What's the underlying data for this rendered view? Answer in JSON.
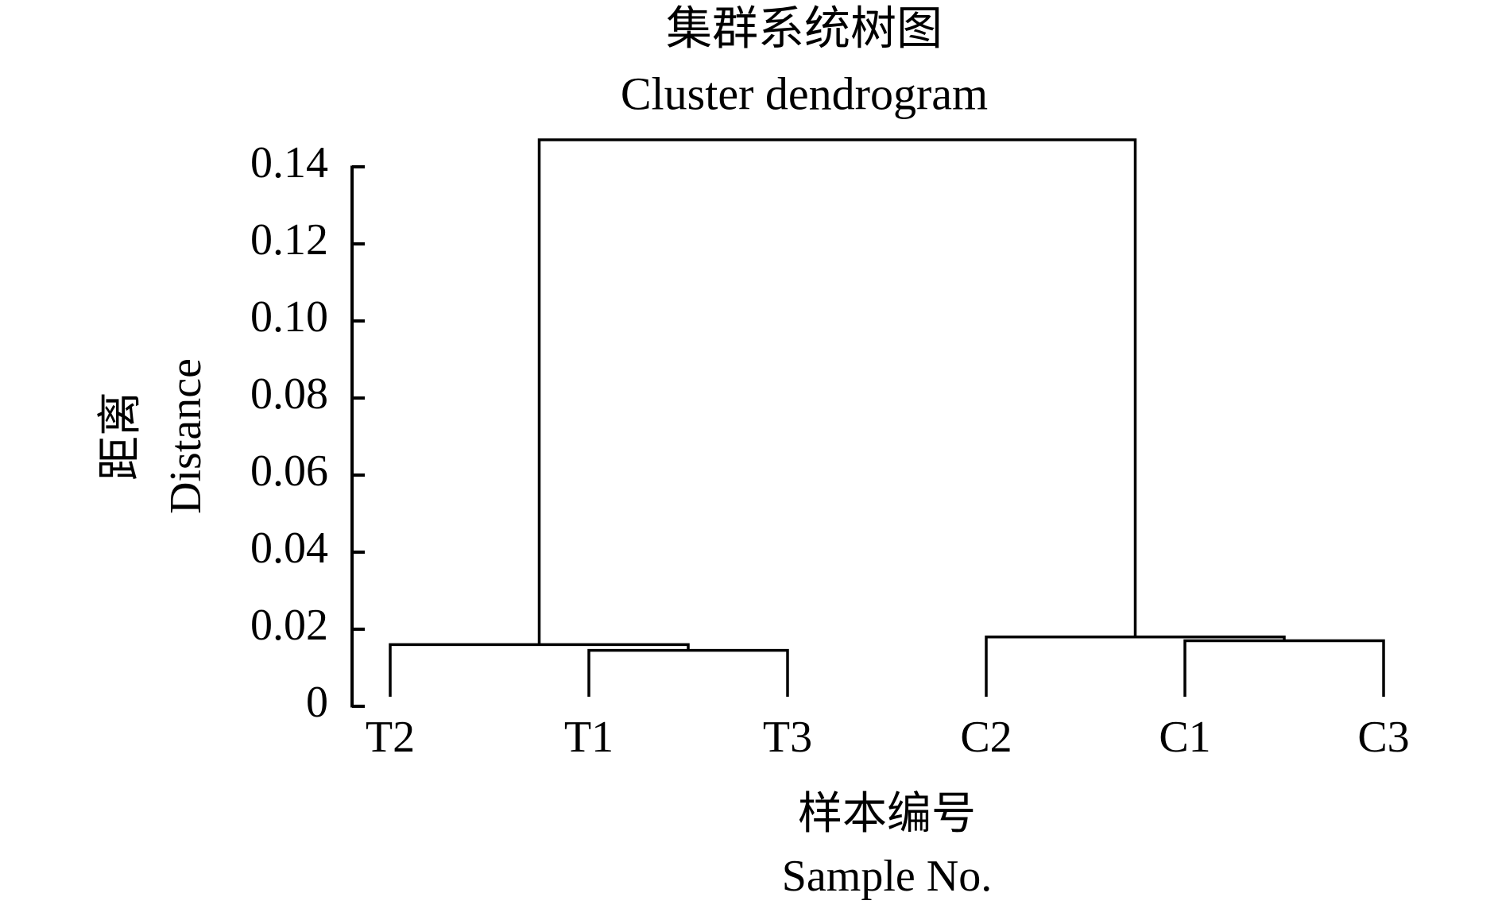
{
  "chart_data": {
    "type": "dendrogram",
    "title": "集群系统树图",
    "subtitle": "Cluster dendrogram",
    "y_label": "距离",
    "y_label_en": "Distance",
    "x_label": "样本编号",
    "x_label_en": "Sample No.",
    "categories": [
      "T2",
      "T1",
      "T3",
      "C2",
      "C1",
      "C3"
    ],
    "merges": [
      {
        "left": 1,
        "right": 2,
        "height": 0.0145
      },
      {
        "left": 0,
        "right": 6,
        "height": 0.016
      },
      {
        "left": 4,
        "right": 5,
        "height": 0.017
      },
      {
        "left": 3,
        "right": 8,
        "height": 0.018
      },
      {
        "left": 7,
        "right": 9,
        "height": 0.147
      }
    ],
    "color": "#000000",
    "ylim": [
      0,
      0.14
    ],
    "yticks": [
      0,
      0.02,
      0.04,
      0.06,
      0.08,
      {
        "value": 0.1,
        "label": "0.10"
      },
      0.12,
      0.14
    ]
  }
}
